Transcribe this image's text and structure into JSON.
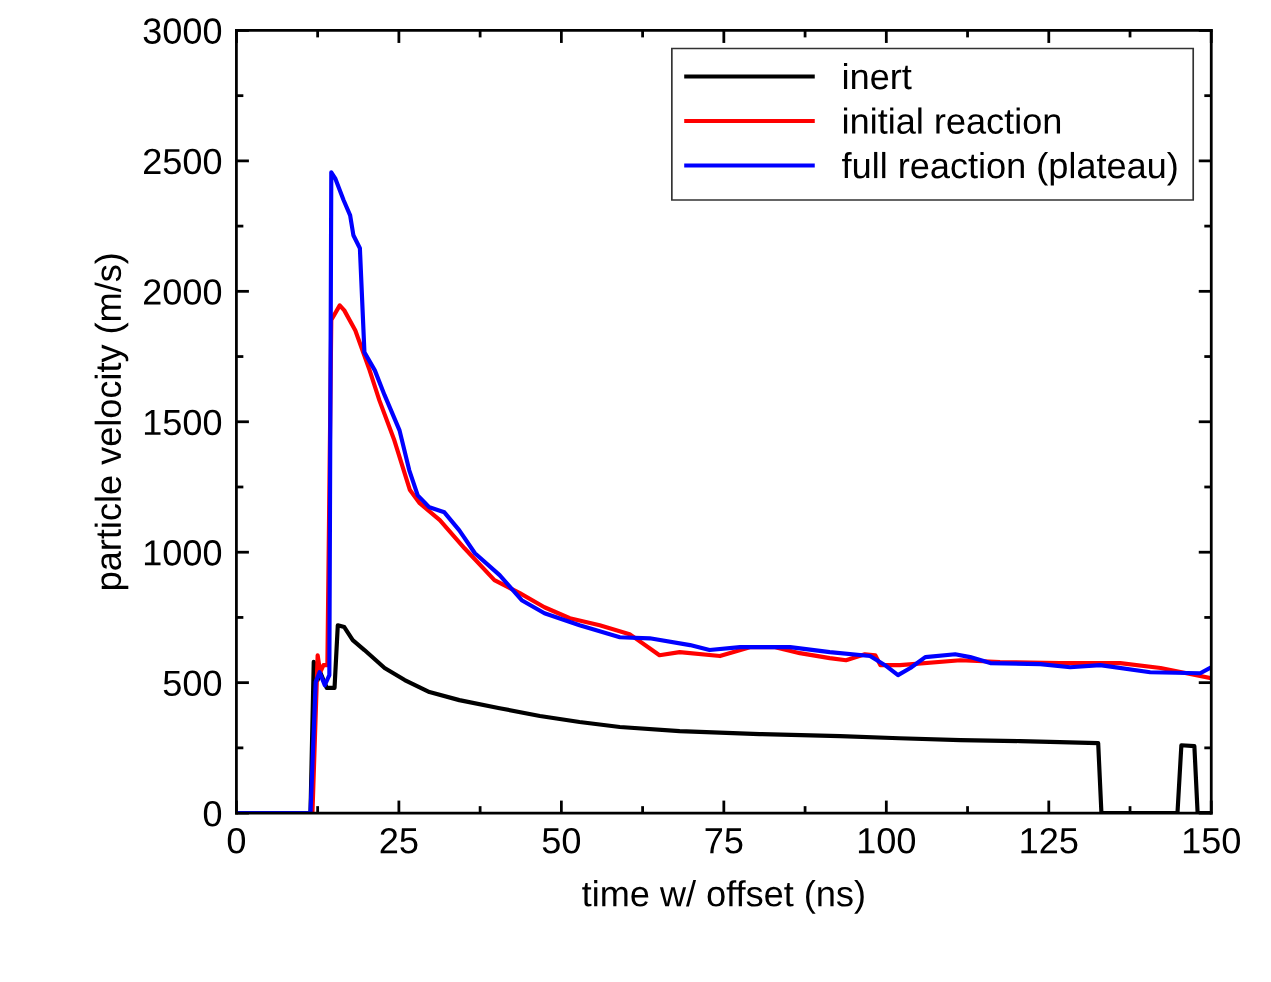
{
  "chart_data": {
    "type": "line",
    "xlabel": "time w/ offset (ns)",
    "ylabel": "particle velocity (m/s)",
    "xlim": [
      0,
      150
    ],
    "xticks": [
      0,
      25,
      50,
      75,
      100,
      125,
      150
    ],
    "ylim": [
      0,
      3000
    ],
    "yticks": [
      0,
      500,
      1000,
      1500,
      2000,
      2500,
      3000
    ],
    "grid": false,
    "legend": "top right",
    "marker": "none",
    "line_style": "solid",
    "series": [
      {
        "name": "inert",
        "color": "#000000",
        "x": [
          0,
          11.4,
          11.9,
          12.5,
          12.9,
          13.9,
          15.1,
          15.6,
          16.6,
          17.9,
          19.7,
          22.8,
          25.9,
          29.7,
          34.3,
          40.5,
          46.7,
          52.8,
          59,
          68.2,
          80.5,
          92.9,
          102,
          111.4,
          120.6,
          126.7,
          132.6,
          133.1,
          144.8,
          145.4,
          147.4,
          147.9,
          150
        ],
        "values": [
          0,
          0,
          580,
          510,
          540,
          480,
          480,
          720,
          713,
          663,
          625,
          556,
          510,
          464,
          433,
          402,
          372,
          349,
          330,
          314,
          303,
          295,
          287,
          280,
          276,
          272,
          268,
          0,
          0,
          260,
          257,
          0,
          0
        ]
      },
      {
        "name": "initial reaction",
        "color": "#ff0000",
        "x": [
          0,
          11.7,
          12.5,
          12.9,
          13.4,
          14.0,
          14.6,
          15.9,
          16.6,
          18.3,
          20.5,
          22,
          24.3,
          26.7,
          28.2,
          31.3,
          35.1,
          39.7,
          43.6,
          47.4,
          51.3,
          55.9,
          60.5,
          65.1,
          68.2,
          74.4,
          79,
          82.9,
          86.7,
          91.3,
          93.8,
          96.7,
          98.3,
          99.1,
          102.1,
          111.4,
          117.5,
          126.7,
          136,
          142.2,
          150
        ],
        "values": [
          0,
          0,
          605,
          540,
          567,
          567,
          1890,
          1946,
          1927,
          1850,
          1697,
          1582,
          1429,
          1238,
          1188,
          1123,
          1015,
          893,
          843,
          789,
          747,
          720,
          686,
          605,
          617,
          602,
          636,
          636,
          613,
          594,
          586,
          609,
          605,
          567,
          567,
          586,
          579,
          575,
          575,
          556,
          517
        ]
      },
      {
        "name": "full reaction (plateau)",
        "color": "#0000ff",
        "x": [
          0,
          11.4,
          12.2,
          12.8,
          13.6,
          14.3,
          14.6,
          15.2,
          16.5,
          17.5,
          18.0,
          19.0,
          19.7,
          21.3,
          22.8,
          25.1,
          26.6,
          27.9,
          29.7,
          32.0,
          34.3,
          36.7,
          40.5,
          43.9,
          47.4,
          52.8,
          59,
          63.6,
          69.8,
          72.8,
          77.5,
          85.2,
          91.3,
          97.5,
          99.8,
          101.8,
          103.7,
          106,
          110.6,
          112.9,
          116,
          123.7,
          128.3,
          132.9,
          140.6,
          148.3,
          150
        ],
        "values": [
          0,
          0,
          502,
          540,
          490,
          529,
          2456,
          2433,
          2349,
          2291,
          2215,
          2165,
          1766,
          1697,
          1602,
          1467,
          1314,
          1218,
          1172,
          1153,
          1084,
          996,
          912,
          816,
          766,
          720,
          674,
          670,
          644,
          625,
          636,
          636,
          617,
          602,
          567,
          529,
          556,
          598,
          609,
          598,
          575,
          571,
          559,
          567,
          540,
          536,
          559
        ]
      }
    ]
  }
}
